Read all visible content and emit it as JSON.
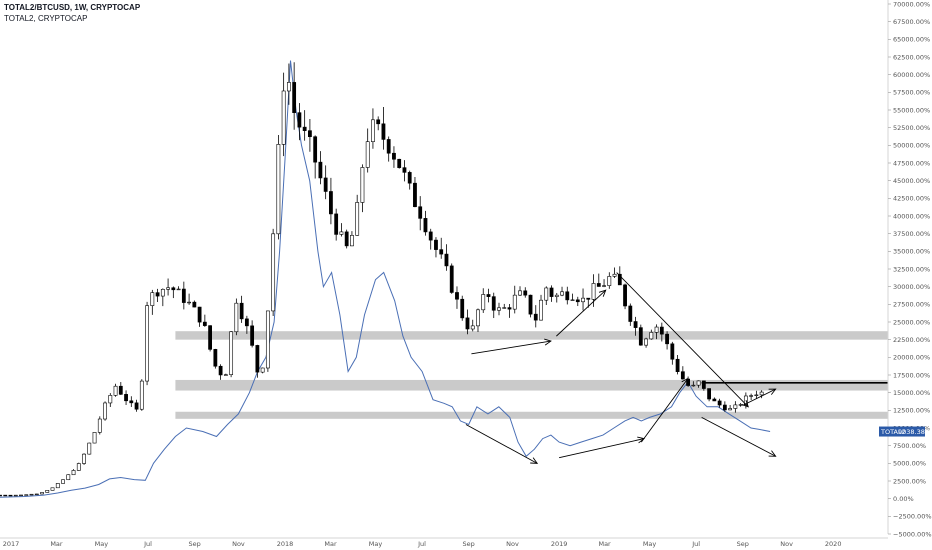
{
  "header": {
    "symbol_line": "TOTAL2/BTCUSD, 1W, CRYPTOCAP",
    "overlay_line": "TOTAL2, CRYPTOCAP"
  },
  "colors": {
    "candle_up": "#ffffff",
    "candle_down": "#000000",
    "candle_border": "#000000",
    "overlay_line": "#4a6fb5",
    "zone_fill": "#9e9e9e",
    "axis_text": "#555555",
    "price_tag": "#2b5aa8"
  },
  "chart_data": {
    "type": "candlestick",
    "title": "TOTAL2/BTCUSD, 1W, CRYPTOCAP",
    "y_axis": {
      "side": "right",
      "unit": "%",
      "range": [
        -5000,
        70000
      ],
      "ticks": [
        {
          "v": 70000,
          "label": "70000.00%"
        },
        {
          "v": 67500,
          "label": "67500.00%"
        },
        {
          "v": 65000,
          "label": "65000.00%"
        },
        {
          "v": 62500,
          "label": "62500.00%"
        },
        {
          "v": 60000,
          "label": "60000.00%"
        },
        {
          "v": 57500,
          "label": "57500.00%"
        },
        {
          "v": 55000,
          "label": "55000.00%"
        },
        {
          "v": 52500,
          "label": "52500.00%"
        },
        {
          "v": 50000,
          "label": "50000.00%"
        },
        {
          "v": 47500,
          "label": "47500.00%"
        },
        {
          "v": 45000,
          "label": "45000.00%"
        },
        {
          "v": 42500,
          "label": "42500.00%"
        },
        {
          "v": 40000,
          "label": "40000.00%"
        },
        {
          "v": 37500,
          "label": "37500.00%"
        },
        {
          "v": 35000,
          "label": "35000.00%"
        },
        {
          "v": 32500,
          "label": "32500.00%"
        },
        {
          "v": 30000,
          "label": "30000.00%"
        },
        {
          "v": 27500,
          "label": "27500.00%"
        },
        {
          "v": 25000,
          "label": "25000.00%"
        },
        {
          "v": 22500,
          "label": "22500.00%"
        },
        {
          "v": 20000,
          "label": "20000.00%"
        },
        {
          "v": 17500,
          "label": "17500.00%"
        },
        {
          "v": 15000,
          "label": "15000.00%"
        },
        {
          "v": 12500,
          "label": "12500.00%"
        },
        {
          "v": 10000,
          "label": "10000.00%"
        },
        {
          "v": 7500,
          "label": "7500.00%"
        },
        {
          "v": 5000,
          "label": "5000.00%"
        },
        {
          "v": 2500,
          "label": "2500.00%"
        },
        {
          "v": 0,
          "label": "0.00%"
        },
        {
          "v": -2500,
          "label": "−2500.00%"
        },
        {
          "v": -5000,
          "label": "−5000.00%"
        }
      ]
    },
    "x_axis": {
      "range": [
        2016.96,
        2020.2
      ],
      "ticks": [
        {
          "t": 2017.0,
          "label": "2017"
        },
        {
          "t": 2017.166,
          "label": "Mar"
        },
        {
          "t": 2017.33,
          "label": "May"
        },
        {
          "t": 2017.5,
          "label": "Jul"
        },
        {
          "t": 2017.67,
          "label": "Sep"
        },
        {
          "t": 2017.83,
          "label": "Nov"
        },
        {
          "t": 2018.0,
          "label": "2018"
        },
        {
          "t": 2018.166,
          "label": "Mar"
        },
        {
          "t": 2018.33,
          "label": "May"
        },
        {
          "t": 2018.5,
          "label": "Jul"
        },
        {
          "t": 2018.67,
          "label": "Sep"
        },
        {
          "t": 2018.83,
          "label": "Nov"
        },
        {
          "t": 2019.0,
          "label": "2019"
        },
        {
          "t": 2019.166,
          "label": "Mar"
        },
        {
          "t": 2019.33,
          "label": "May"
        },
        {
          "t": 2019.5,
          "label": "Jul"
        },
        {
          "t": 2019.67,
          "label": "Sep"
        },
        {
          "t": 2019.83,
          "label": "Nov"
        },
        {
          "t": 2020.0,
          "label": "2020"
        }
      ]
    },
    "candles_anchors": [
      [
        2016.96,
        500
      ],
      [
        2017.05,
        500
      ],
      [
        2017.12,
        700
      ],
      [
        2017.17,
        1500
      ],
      [
        2017.22,
        3000
      ],
      [
        2017.27,
        5000
      ],
      [
        2017.32,
        9000
      ],
      [
        2017.36,
        13000
      ],
      [
        2017.4,
        16000
      ],
      [
        2017.45,
        13500
      ],
      [
        2017.49,
        12000
      ],
      [
        2017.51,
        27500
      ],
      [
        2017.55,
        29500
      ],
      [
        2017.6,
        30000
      ],
      [
        2017.66,
        28000
      ],
      [
        2017.72,
        25000
      ],
      [
        2017.76,
        19000
      ],
      [
        2017.8,
        17000
      ],
      [
        2017.84,
        28500
      ],
      [
        2017.89,
        23000
      ],
      [
        2017.93,
        16000
      ],
      [
        2017.955,
        26000
      ],
      [
        2017.98,
        40000
      ],
      [
        2018.0,
        52000
      ],
      [
        2018.02,
        62000
      ],
      [
        2018.05,
        55000
      ],
      [
        2018.08,
        52000
      ],
      [
        2018.12,
        49000
      ],
      [
        2018.15,
        45000
      ],
      [
        2018.19,
        40000
      ],
      [
        2018.22,
        37000
      ],
      [
        2018.25,
        35000
      ],
      [
        2018.28,
        40000
      ],
      [
        2018.31,
        50000
      ],
      [
        2018.33,
        52500
      ],
      [
        2018.36,
        52000
      ],
      [
        2018.4,
        50000
      ],
      [
        2018.44,
        47000
      ],
      [
        2018.48,
        43000
      ],
      [
        2018.52,
        40000
      ],
      [
        2018.56,
        36000
      ],
      [
        2018.6,
        33000
      ],
      [
        2018.64,
        28500
      ],
      [
        2018.67,
        25500
      ],
      [
        2018.7,
        23500
      ],
      [
        2018.73,
        27500
      ],
      [
        2018.76,
        29000
      ],
      [
        2018.79,
        26500
      ],
      [
        2018.83,
        27000
      ],
      [
        2018.87,
        29000
      ],
      [
        2018.9,
        28000
      ],
      [
        2018.93,
        25000
      ],
      [
        2018.97,
        30000
      ],
      [
        2019.0,
        28500
      ],
      [
        2019.03,
        29000
      ],
      [
        2019.07,
        29000
      ],
      [
        2019.11,
        28000
      ],
      [
        2019.14,
        29500
      ],
      [
        2019.17,
        30000
      ],
      [
        2019.21,
        31500
      ],
      [
        2019.24,
        30000
      ],
      [
        2019.27,
        26500
      ],
      [
        2019.3,
        24000
      ],
      [
        2019.32,
        22000
      ],
      [
        2019.35,
        24000
      ],
      [
        2019.38,
        24500
      ],
      [
        2019.41,
        22000
      ],
      [
        2019.44,
        19000
      ],
      [
        2019.47,
        17000
      ],
      [
        2019.5,
        15500
      ],
      [
        2019.53,
        16500
      ],
      [
        2019.56,
        14500
      ],
      [
        2019.59,
        13500
      ],
      [
        2019.62,
        13000
      ],
      [
        2019.65,
        12500
      ],
      [
        2019.68,
        13500
      ],
      [
        2019.71,
        14500
      ],
      [
        2019.74,
        15000
      ]
    ],
    "overlay_series": {
      "name": "TOTAL2",
      "label": "TOTAL2",
      "last_value_label": "9038.38%",
      "values": [
        [
          2016.96,
          200
        ],
        [
          2017.05,
          300
        ],
        [
          2017.12,
          500
        ],
        [
          2017.17,
          800
        ],
        [
          2017.22,
          1200
        ],
        [
          2017.27,
          1500
        ],
        [
          2017.32,
          2000
        ],
        [
          2017.36,
          2800
        ],
        [
          2017.4,
          3000
        ],
        [
          2017.45,
          2700
        ],
        [
          2017.49,
          2600
        ],
        [
          2017.52,
          5000
        ],
        [
          2017.56,
          7000
        ],
        [
          2017.6,
          8800
        ],
        [
          2017.64,
          10000
        ],
        [
          2017.7,
          9500
        ],
        [
          2017.75,
          8800
        ],
        [
          2017.79,
          10500
        ],
        [
          2017.83,
          12000
        ],
        [
          2017.87,
          15000
        ],
        [
          2017.9,
          18000
        ],
        [
          2017.93,
          20000
        ],
        [
          2017.96,
          25000
        ],
        [
          2017.98,
          35000
        ],
        [
          2018.0,
          48000
        ],
        [
          2018.02,
          62000
        ],
        [
          2018.04,
          55000
        ],
        [
          2018.06,
          50000
        ],
        [
          2018.09,
          45000
        ],
        [
          2018.12,
          35000
        ],
        [
          2018.14,
          30000
        ],
        [
          2018.17,
          32000
        ],
        [
          2018.2,
          26000
        ],
        [
          2018.23,
          18000
        ],
        [
          2018.26,
          20000
        ],
        [
          2018.29,
          26000
        ],
        [
          2018.33,
          31000
        ],
        [
          2018.36,
          32000
        ],
        [
          2018.4,
          28000
        ],
        [
          2018.43,
          23000
        ],
        [
          2018.46,
          20000
        ],
        [
          2018.5,
          18000
        ],
        [
          2018.54,
          14000
        ],
        [
          2018.58,
          13500
        ],
        [
          2018.61,
          13000
        ],
        [
          2018.64,
          11000
        ],
        [
          2018.67,
          10500
        ],
        [
          2018.7,
          13000
        ],
        [
          2018.74,
          12000
        ],
        [
          2018.78,
          13000
        ],
        [
          2018.82,
          11500
        ],
        [
          2018.85,
          8000
        ],
        [
          2018.88,
          6000
        ],
        [
          2018.91,
          7000
        ],
        [
          2018.94,
          8500
        ],
        [
          2018.97,
          9000
        ],
        [
          2019.0,
          8000
        ],
        [
          2019.04,
          7500
        ],
        [
          2019.08,
          8000
        ],
        [
          2019.12,
          8500
        ],
        [
          2019.16,
          9000
        ],
        [
          2019.2,
          10000
        ],
        [
          2019.24,
          11000
        ],
        [
          2019.27,
          11500
        ],
        [
          2019.3,
          11000
        ],
        [
          2019.33,
          11500
        ],
        [
          2019.37,
          12000
        ],
        [
          2019.41,
          13000
        ],
        [
          2019.44,
          15000
        ],
        [
          2019.47,
          16500
        ],
        [
          2019.5,
          14500
        ],
        [
          2019.54,
          13000
        ],
        [
          2019.58,
          13000
        ],
        [
          2019.62,
          12000
        ],
        [
          2019.66,
          11000
        ],
        [
          2019.7,
          10000
        ],
        [
          2019.73,
          9800
        ],
        [
          2019.77,
          9500
        ]
      ]
    },
    "zones": [
      {
        "from": 22500,
        "to": 23700
      },
      {
        "from": 15300,
        "to": 16800
      },
      {
        "from": 11300,
        "to": 12300
      }
    ],
    "horizontal_line": {
      "value": 16400,
      "from_t": 2019.52,
      "to_t": 2020.2
    },
    "trend_arrows": [
      {
        "from": [
          2018.68,
          20500
        ],
        "to": [
          2018.97,
          22300
        ]
      },
      {
        "from": [
          2018.66,
          10500
        ],
        "to": [
          2018.92,
          5000
        ]
      },
      {
        "from": [
          2018.99,
          23000
        ],
        "to": [
          2019.17,
          29500
        ]
      },
      {
        "from": [
          2019.0,
          5800
        ],
        "to": [
          2019.31,
          8500
        ]
      },
      {
        "from": [
          2019.21,
          32000
        ],
        "to": [
          2019.69,
          13000
        ]
      },
      {
        "from": [
          2019.3,
          8000
        ],
        "to": [
          2019.47,
          17000
        ]
      },
      {
        "from": [
          2019.52,
          11500
        ],
        "to": [
          2019.79,
          6000
        ]
      },
      {
        "from": [
          2019.67,
          13200
        ],
        "to": [
          2019.79,
          15500
        ]
      }
    ],
    "grid": false,
    "legend": "top-left"
  }
}
